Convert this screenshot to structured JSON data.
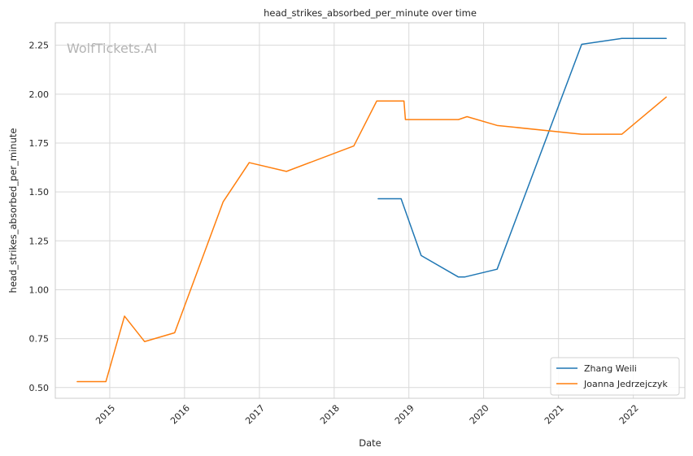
{
  "chart_data": {
    "type": "line",
    "title": "head_strikes_absorbed_per_minute over time",
    "xlabel": "Date",
    "ylabel": "head_strikes_absorbed_per_minute",
    "watermark": "WolfTickets.AI",
    "x_type": "date",
    "xlim": [
      "2014-04-10",
      "2022-09-10"
    ],
    "ylim": [
      0.445,
      2.365
    ],
    "x_ticks": [
      "2015-01-01",
      "2016-01-01",
      "2017-01-01",
      "2018-01-01",
      "2019-01-01",
      "2020-01-01",
      "2021-01-01",
      "2022-01-01"
    ],
    "x_tick_labels": [
      "2015",
      "2016",
      "2017",
      "2018",
      "2019",
      "2020",
      "2021",
      "2022"
    ],
    "y_ticks": [
      0.5,
      0.75,
      1.0,
      1.25,
      1.5,
      1.75,
      2.0,
      2.25
    ],
    "y_tick_labels": [
      "0.50",
      "0.75",
      "1.00",
      "1.25",
      "1.50",
      "1.75",
      "2.00",
      "2.25"
    ],
    "grid": true,
    "legend_position": "lower-right",
    "series": [
      {
        "name": "Zhang Weili",
        "color": "#1f77b4",
        "points": [
          {
            "x": "2018-08-04",
            "y": 1.465
          },
          {
            "x": "2018-11-24",
            "y": 1.465
          },
          {
            "x": "2019-03-02",
            "y": 1.175
          },
          {
            "x": "2019-08-31",
            "y": 1.065
          },
          {
            "x": "2019-09-30",
            "y": 1.065
          },
          {
            "x": "2020-03-07",
            "y": 1.105
          },
          {
            "x": "2021-04-24",
            "y": 2.255
          },
          {
            "x": "2021-11-06",
            "y": 2.285
          },
          {
            "x": "2022-06-11",
            "y": 2.285
          }
        ]
      },
      {
        "name": "Joanna Jedrzejczyk",
        "color": "#ff7f0e",
        "points": [
          {
            "x": "2014-07-26",
            "y": 0.53
          },
          {
            "x": "2014-12-13",
            "y": 0.53
          },
          {
            "x": "2015-03-14",
            "y": 0.865
          },
          {
            "x": "2015-06-20",
            "y": 0.735
          },
          {
            "x": "2015-11-14",
            "y": 0.78
          },
          {
            "x": "2016-07-08",
            "y": 1.45
          },
          {
            "x": "2016-11-12",
            "y": 1.65
          },
          {
            "x": "2017-05-13",
            "y": 1.605
          },
          {
            "x": "2018-04-07",
            "y": 1.735
          },
          {
            "x": "2018-07-28",
            "y": 1.965
          },
          {
            "x": "2018-12-08",
            "y": 1.965
          },
          {
            "x": "2018-12-15",
            "y": 1.87
          },
          {
            "x": "2019-08-31",
            "y": 1.87
          },
          {
            "x": "2019-10-12",
            "y": 1.885
          },
          {
            "x": "2020-03-07",
            "y": 1.84
          },
          {
            "x": "2021-04-24",
            "y": 1.795
          },
          {
            "x": "2021-11-06",
            "y": 1.795
          },
          {
            "x": "2022-06-11",
            "y": 1.985
          }
        ]
      }
    ]
  }
}
